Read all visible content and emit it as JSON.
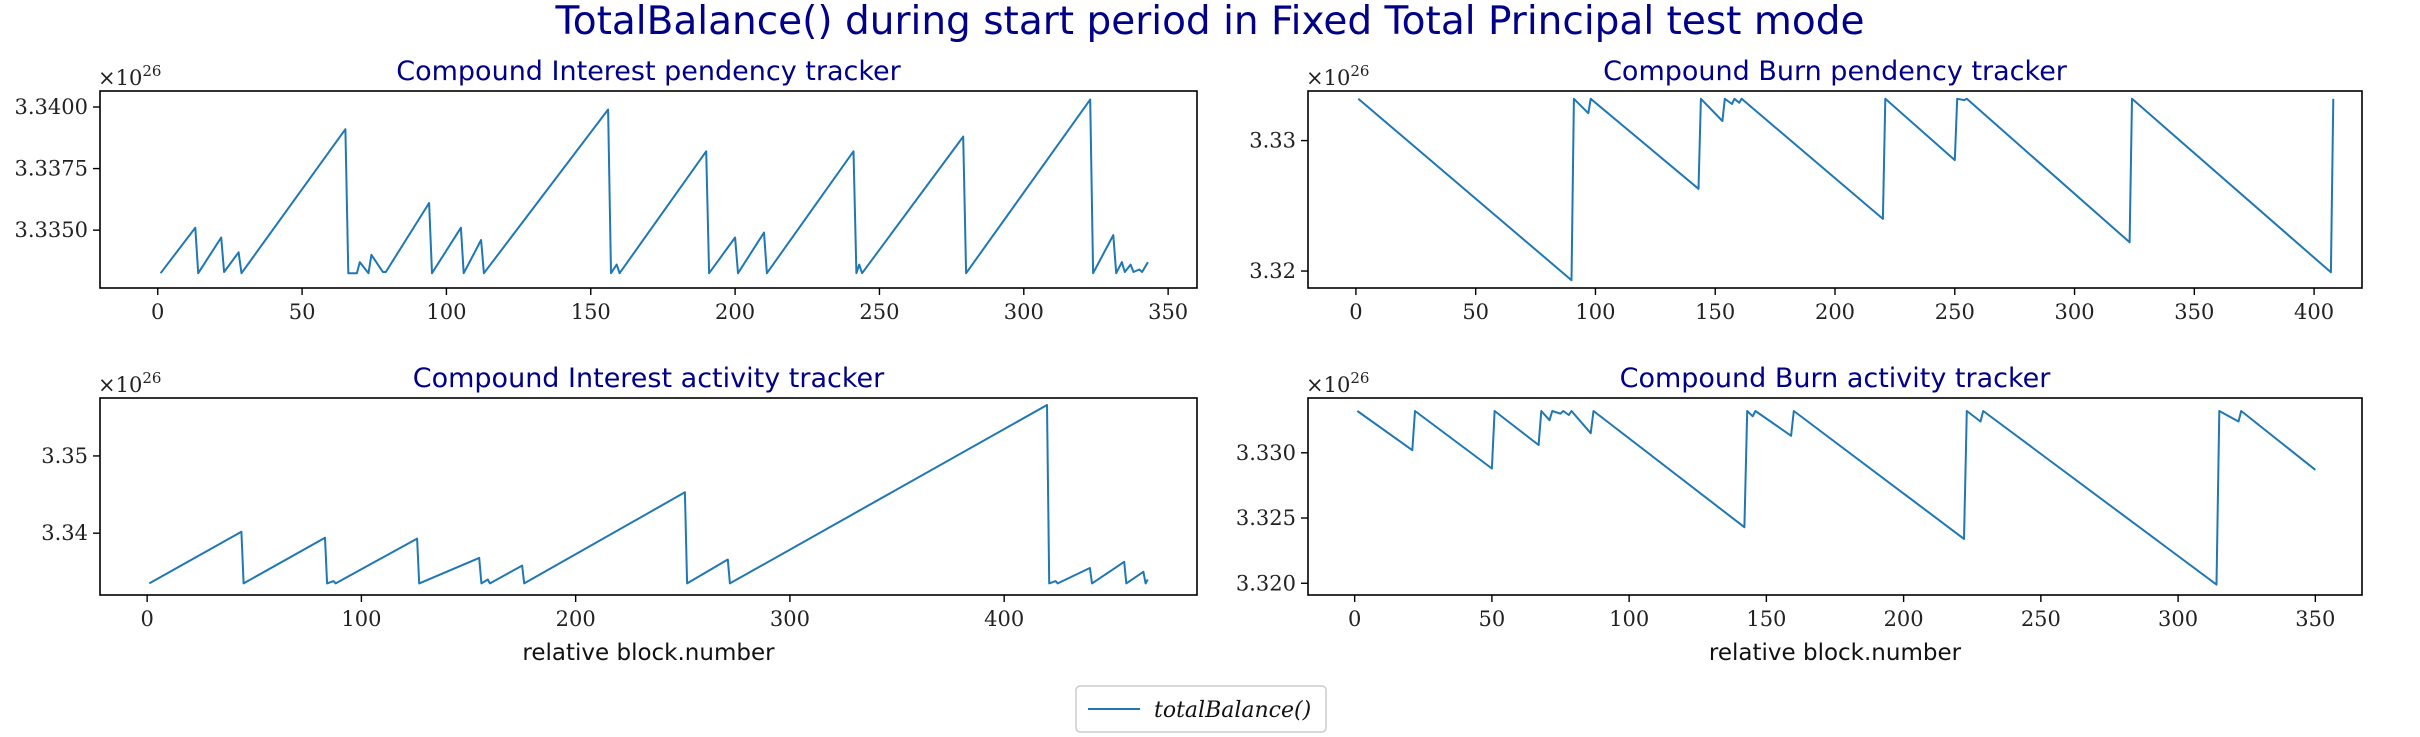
{
  "figure": {
    "suptitle": "TotalBalance() during start period in Fixed Total Principal test mode",
    "legend_label": "totalBalance()",
    "series_color": "#1f77b4",
    "title_color": "#00008b"
  },
  "chart_data": [
    {
      "type": "line",
      "title": "Compound Interest pendency tracker",
      "xlabel": "",
      "ylabel": "",
      "y_multiplier": "×10^26",
      "xlim": [
        -20,
        360
      ],
      "ylim": [
        3.33265,
        3.34065
      ],
      "x_ticks": [
        0,
        50,
        100,
        150,
        200,
        250,
        300,
        350
      ],
      "y_ticks": [
        3.335,
        3.3375,
        3.34
      ],
      "y_tick_labels": [
        "3.3350",
        "3.3375",
        "3.3400"
      ],
      "series": [
        {
          "x": [
            1,
            13,
            14,
            22,
            23,
            28,
            29,
            65,
            66,
            69,
            70,
            73,
            74,
            78,
            79,
            94,
            95,
            105,
            106,
            112,
            113,
            156,
            157,
            159,
            160,
            190,
            191,
            200,
            201,
            210,
            211,
            241,
            242,
            243,
            244,
            279,
            280,
            323,
            324,
            331,
            332,
            334,
            335,
            337,
            338,
            340,
            341,
            343
          ],
          "y": [
            3.33325,
            3.3351,
            3.33325,
            3.3347,
            3.3333,
            3.3341,
            3.33325,
            3.3391,
            3.33325,
            3.33325,
            3.3337,
            3.33325,
            3.334,
            3.3333,
            3.3333,
            3.3361,
            3.33325,
            3.3351,
            3.33325,
            3.3346,
            3.33325,
            3.3399,
            3.33325,
            3.3336,
            3.33325,
            3.3382,
            3.33325,
            3.3347,
            3.33325,
            3.3349,
            3.33325,
            3.3382,
            3.33325,
            3.3336,
            3.33325,
            3.3388,
            3.33325,
            3.3403,
            3.33325,
            3.3348,
            3.33325,
            3.3337,
            3.3333,
            3.3336,
            3.3333,
            3.3334,
            3.3333,
            3.3337
          ]
        }
      ]
    },
    {
      "type": "line",
      "title": "Compound Burn pendency tracker",
      "xlabel": "",
      "ylabel": "",
      "y_multiplier": "×10^26",
      "xlim": [
        -20,
        420
      ],
      "ylim": [
        3.3187,
        3.3338
      ],
      "x_ticks": [
        0,
        50,
        100,
        150,
        200,
        250,
        300,
        350,
        400
      ],
      "y_ticks": [
        3.32,
        3.33
      ],
      "y_tick_labels": [
        "3.32",
        "3.33"
      ],
      "series": [
        {
          "x": [
            1,
            90,
            91,
            97,
            98,
            143,
            144,
            153,
            154,
            157,
            158,
            160,
            161,
            220,
            221,
            250,
            251,
            254,
            255,
            323,
            324,
            407,
            408
          ],
          "y": [
            3.3332,
            3.3193,
            3.3332,
            3.3321,
            3.3332,
            3.3263,
            3.3332,
            3.3315,
            3.3332,
            3.3328,
            3.3332,
            3.3329,
            3.3332,
            3.324,
            3.3332,
            3.3285,
            3.3332,
            3.3331,
            3.3332,
            3.3222,
            3.3332,
            3.3199,
            3.3332
          ]
        }
      ]
    },
    {
      "type": "line",
      "title": "Compound Interest activity tracker",
      "xlabel": "relative block.number",
      "ylabel": "",
      "y_multiplier": "×10^26",
      "xlim": [
        -22,
        490
      ],
      "ylim": [
        3.332,
        3.3575
      ],
      "x_ticks": [
        0,
        100,
        200,
        300,
        400
      ],
      "y_ticks": [
        3.34,
        3.35
      ],
      "y_tick_labels": [
        "3.34",
        "3.35"
      ],
      "series": [
        {
          "x": [
            1,
            44,
            45,
            83,
            84,
            87,
            88,
            126,
            127,
            155,
            156,
            159,
            160,
            175,
            176,
            251,
            252,
            271,
            272,
            420,
            421,
            424,
            425,
            440,
            441,
            456,
            457,
            465,
            466,
            467
          ],
          "y": [
            3.3335,
            3.3402,
            3.3335,
            3.3394,
            3.3335,
            3.3338,
            3.3335,
            3.3393,
            3.3335,
            3.3368,
            3.3335,
            3.334,
            3.3335,
            3.3358,
            3.3335,
            3.3453,
            3.3335,
            3.3366,
            3.3335,
            3.3566,
            3.3335,
            3.3338,
            3.3335,
            3.3355,
            3.3335,
            3.3363,
            3.3335,
            3.335,
            3.3335,
            3.334
          ]
        }
      ]
    },
    {
      "type": "line",
      "title": "Compound Burn activity tracker",
      "xlabel": "relative block.number",
      "ylabel": "",
      "y_multiplier": "×10^26",
      "xlim": [
        -17,
        367
      ],
      "ylim": [
        3.3191,
        3.3342
      ],
      "x_ticks": [
        0,
        50,
        100,
        150,
        200,
        250,
        300,
        350
      ],
      "y_ticks": [
        3.32,
        3.325,
        3.33
      ],
      "y_tick_labels": [
        "3.320",
        "3.325",
        "3.330"
      ],
      "series": [
        {
          "x": [
            1,
            21,
            22,
            50,
            51,
            67,
            68,
            71,
            72,
            75,
            76,
            78,
            79,
            86,
            87,
            142,
            143,
            145,
            146,
            159,
            160,
            222,
            223,
            228,
            229,
            314,
            315,
            322,
            323,
            350
          ],
          "y": [
            3.3332,
            3.3302,
            3.3332,
            3.3288,
            3.3332,
            3.3306,
            3.3332,
            3.3325,
            3.3332,
            3.333,
            3.3332,
            3.3329,
            3.3332,
            3.3315,
            3.3332,
            3.3243,
            3.3332,
            3.3328,
            3.3332,
            3.3313,
            3.3332,
            3.3234,
            3.3332,
            3.3324,
            3.3332,
            3.3199,
            3.3332,
            3.3324,
            3.3332,
            3.3287
          ]
        }
      ]
    }
  ]
}
